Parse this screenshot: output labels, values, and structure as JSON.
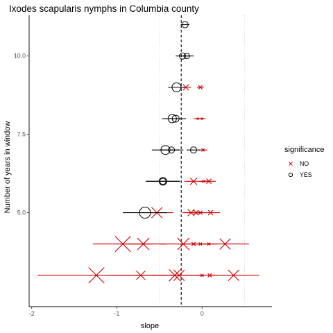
{
  "chart_data": {
    "type": "scatter",
    "title": "Ixodes scapularis nymphs in Columbia county",
    "xlabel": "slope",
    "ylabel": "Number of years in window",
    "xlim": [
      -2.03,
      0.82
    ],
    "ylim": [
      2.0,
      11.3
    ],
    "x_ticks": [
      -2,
      -1,
      0
    ],
    "x_tick_labels": [
      "-2",
      "-1",
      "0"
    ],
    "y_ticks": [
      5.0,
      7.5,
      10.0
    ],
    "y_tick_labels": [
      "5.0",
      "7.5",
      "10.0"
    ],
    "grid": "minor vertical dotted lines at -0.5 and 0.5",
    "reference_line": {
      "x": -0.245,
      "style": "dashed"
    },
    "legend": {
      "title": "significance",
      "placement": "right",
      "entries": [
        {
          "label": "NO",
          "marker": "cross",
          "color": "#cc0000"
        },
        {
          "label": "YES",
          "marker": "circle",
          "color": "#000000"
        }
      ]
    },
    "series": [
      {
        "name": "NO",
        "color": "#cc0000",
        "points": [
          {
            "y": 3,
            "x": -1.24,
            "xmin": -1.93,
            "xmax": -0.55,
            "size": 16
          },
          {
            "y": 3,
            "x": -0.72,
            "xmin": -1.09,
            "xmax": -0.35,
            "size": 9
          },
          {
            "y": 3,
            "x": -0.32,
            "xmin": -0.58,
            "xmax": -0.06,
            "size": 12
          },
          {
            "y": 3,
            "x": -0.27,
            "xmin": -0.53,
            "xmax": -0.01,
            "size": 11
          },
          {
            "y": 3,
            "x": 0.37,
            "xmin": 0.07,
            "xmax": 0.67,
            "size": 11
          },
          {
            "y": 3,
            "x": 0.09,
            "xmin": 0.0,
            "xmax": 0.18,
            "size": 4
          },
          {
            "y": 3,
            "x": 0.0,
            "xmin": -0.05,
            "xmax": 0.05,
            "size": 3
          },
          {
            "y": 4,
            "x": -0.93,
            "xmin": -1.28,
            "xmax": -0.58,
            "size": 16
          },
          {
            "y": 4,
            "x": -0.69,
            "xmin": -0.96,
            "xmax": -0.42,
            "size": 12
          },
          {
            "y": 4,
            "x": -0.22,
            "xmin": -0.49,
            "xmax": 0.05,
            "size": 12
          },
          {
            "y": 4,
            "x": 0.27,
            "xmin": -0.01,
            "xmax": 0.55,
            "size": 11
          },
          {
            "y": 4,
            "x": -0.1,
            "xmin": -0.22,
            "xmax": 0.02,
            "size": 4
          },
          {
            "y": 4,
            "x": 0.08,
            "xmin": -0.02,
            "xmax": 0.18,
            "size": 3
          },
          {
            "y": 4,
            "x": -0.02,
            "xmin": -0.1,
            "xmax": 0.06,
            "size": 3
          },
          {
            "y": 5,
            "x": -0.53,
            "xmin": -0.72,
            "xmax": -0.34,
            "size": 11
          },
          {
            "y": 5,
            "x": -0.13,
            "xmin": -0.23,
            "xmax": -0.03,
            "size": 7
          },
          {
            "y": 5,
            "x": -0.07,
            "xmin": -0.14,
            "xmax": 0.0,
            "size": 5
          },
          {
            "y": 5,
            "x": 0.1,
            "xmin": -0.01,
            "xmax": 0.21,
            "size": 5
          },
          {
            "y": 5,
            "x": -0.02,
            "xmin": -0.08,
            "xmax": 0.04,
            "size": 4
          },
          {
            "y": 6,
            "x": -0.1,
            "xmin": -0.21,
            "xmax": 0.01,
            "size": 7
          },
          {
            "y": 6,
            "x": 0.08,
            "xmin": 0.0,
            "xmax": 0.16,
            "size": 5
          },
          {
            "y": 6,
            "x": 0.02,
            "xmin": -0.03,
            "xmax": 0.07,
            "size": 3
          },
          {
            "y": 7,
            "x": 0.01,
            "xmin": -0.04,
            "xmax": 0.06,
            "size": 3
          },
          {
            "y": 8,
            "x": -0.05,
            "xmin": -0.1,
            "xmax": 0.0,
            "size": 2
          },
          {
            "y": 8,
            "x": 0.0,
            "xmin": -0.04,
            "xmax": 0.04,
            "size": 2
          },
          {
            "y": 9,
            "x": -0.19,
            "xmin": -0.25,
            "xmax": -0.13,
            "size": 6
          },
          {
            "y": 9,
            "x": -0.02,
            "xmin": -0.06,
            "xmax": 0.02,
            "size": 4
          }
        ]
      },
      {
        "name": "YES",
        "color": "#000000",
        "points": [
          {
            "y": 5,
            "x": -0.67,
            "xmin": -0.93,
            "xmax": -0.41,
            "size": 8
          },
          {
            "y": 6,
            "x": -0.46,
            "xmin": -0.66,
            "xmax": -0.26,
            "size": 5.5
          },
          {
            "y": 6,
            "x": -0.46,
            "xmin": -0.66,
            "xmax": -0.26,
            "size": 4.5
          },
          {
            "y": 7,
            "x": -0.43,
            "xmin": -0.59,
            "xmax": -0.27,
            "size": 6.5
          },
          {
            "y": 7,
            "x": -0.36,
            "xmin": -0.5,
            "xmax": -0.22,
            "size": 4.5
          },
          {
            "y": 7,
            "x": -0.1,
            "xmin": -0.18,
            "xmax": -0.02,
            "size": 4.5
          },
          {
            "y": 8,
            "x": -0.35,
            "xmin": -0.47,
            "xmax": -0.23,
            "size": 6
          },
          {
            "y": 8,
            "x": -0.31,
            "xmin": -0.43,
            "xmax": -0.19,
            "size": 5
          },
          {
            "y": 9,
            "x": -0.3,
            "xmin": -0.4,
            "xmax": -0.2,
            "size": 6.5
          },
          {
            "y": 10,
            "x": -0.23,
            "xmin": -0.31,
            "xmax": -0.15,
            "size": 4.5
          },
          {
            "y": 10,
            "x": -0.18,
            "xmin": -0.26,
            "xmax": -0.1,
            "size": 4
          },
          {
            "y": 11,
            "x": -0.2,
            "xmin": -0.25,
            "xmax": -0.15,
            "size": 4.5
          }
        ]
      }
    ]
  }
}
